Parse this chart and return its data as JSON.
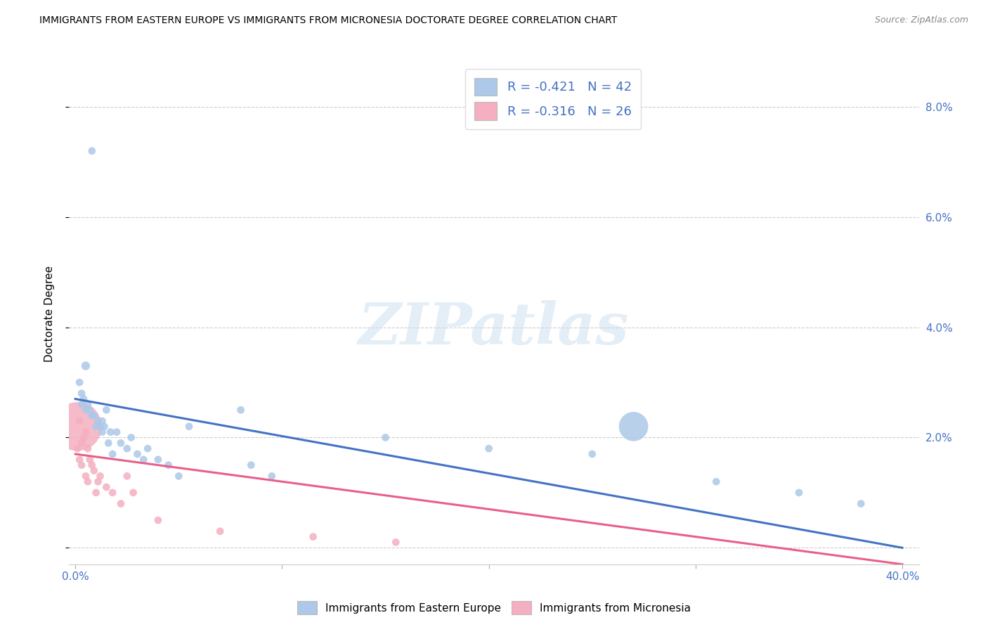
{
  "title": "IMMIGRANTS FROM EASTERN EUROPE VS IMMIGRANTS FROM MICRONESIA DOCTORATE DEGREE CORRELATION CHART",
  "source": "Source: ZipAtlas.com",
  "ylabel": "Doctorate Degree",
  "watermark_text": "ZIPatlas",
  "xlim": [
    -0.003,
    0.408
  ],
  "ylim": [
    -0.003,
    0.088
  ],
  "yticks": [
    0.0,
    0.02,
    0.04,
    0.06,
    0.08
  ],
  "ytick_labels_right": [
    "",
    "2.0%",
    "4.0%",
    "6.0%",
    "8.0%"
  ],
  "xticks": [
    0.0,
    0.1,
    0.2,
    0.3,
    0.4
  ],
  "xtick_labels": [
    "0.0%",
    "",
    "",
    "",
    "40.0%"
  ],
  "blue_R": -0.421,
  "blue_N": 42,
  "pink_R": -0.316,
  "pink_N": 26,
  "legend_label_blue": "Immigrants from Eastern Europe",
  "legend_label_pink": "Immigrants from Micronesia",
  "blue_color": "#adc8e8",
  "pink_color": "#f5afc0",
  "blue_line_color": "#4472c4",
  "pink_line_color": "#e8608a",
  "blue_trend_x": [
    0.0,
    0.4
  ],
  "blue_trend_y": [
    0.027,
    0.0
  ],
  "pink_trend_x": [
    0.0,
    0.4
  ],
  "pink_trend_y": [
    0.017,
    -0.003
  ],
  "blue_x": [
    0.002,
    0.003,
    0.003,
    0.004,
    0.005,
    0.005,
    0.006,
    0.007,
    0.008,
    0.008,
    0.009,
    0.01,
    0.011,
    0.012,
    0.013,
    0.013,
    0.014,
    0.015,
    0.016,
    0.017,
    0.018,
    0.02,
    0.022,
    0.025,
    0.027,
    0.03,
    0.033,
    0.035,
    0.04,
    0.045,
    0.05,
    0.055,
    0.08,
    0.085,
    0.095,
    0.15,
    0.2,
    0.25,
    0.27,
    0.31,
    0.35,
    0.38
  ],
  "blue_y": [
    0.03,
    0.028,
    0.026,
    0.027,
    0.033,
    0.025,
    0.026,
    0.025,
    0.024,
    0.072,
    0.024,
    0.022,
    0.023,
    0.022,
    0.023,
    0.021,
    0.022,
    0.025,
    0.019,
    0.021,
    0.017,
    0.021,
    0.019,
    0.018,
    0.02,
    0.017,
    0.016,
    0.018,
    0.016,
    0.015,
    0.013,
    0.022,
    0.025,
    0.015,
    0.013,
    0.02,
    0.018,
    0.017,
    0.022,
    0.012,
    0.01,
    0.008
  ],
  "blue_sizes": [
    60,
    60,
    60,
    60,
    80,
    60,
    60,
    60,
    60,
    60,
    60,
    60,
    60,
    60,
    60,
    60,
    60,
    60,
    60,
    60,
    60,
    60,
    60,
    60,
    60,
    60,
    60,
    60,
    60,
    60,
    60,
    60,
    60,
    60,
    60,
    60,
    60,
    60,
    900,
    60,
    60,
    60
  ],
  "pink_x": [
    0.001,
    0.001,
    0.002,
    0.002,
    0.003,
    0.003,
    0.004,
    0.005,
    0.005,
    0.006,
    0.006,
    0.007,
    0.008,
    0.009,
    0.01,
    0.011,
    0.012,
    0.015,
    0.018,
    0.022,
    0.025,
    0.028,
    0.04,
    0.07,
    0.115,
    0.155
  ],
  "pink_y": [
    0.022,
    0.018,
    0.023,
    0.016,
    0.019,
    0.015,
    0.02,
    0.021,
    0.013,
    0.018,
    0.012,
    0.016,
    0.015,
    0.014,
    0.01,
    0.012,
    0.013,
    0.011,
    0.01,
    0.008,
    0.013,
    0.01,
    0.005,
    0.003,
    0.002,
    0.001
  ],
  "pink_sizes": [
    2500,
    60,
    60,
    60,
    60,
    60,
    60,
    60,
    60,
    60,
    60,
    60,
    60,
    60,
    60,
    60,
    60,
    60,
    60,
    60,
    60,
    60,
    60,
    60,
    60,
    60
  ]
}
